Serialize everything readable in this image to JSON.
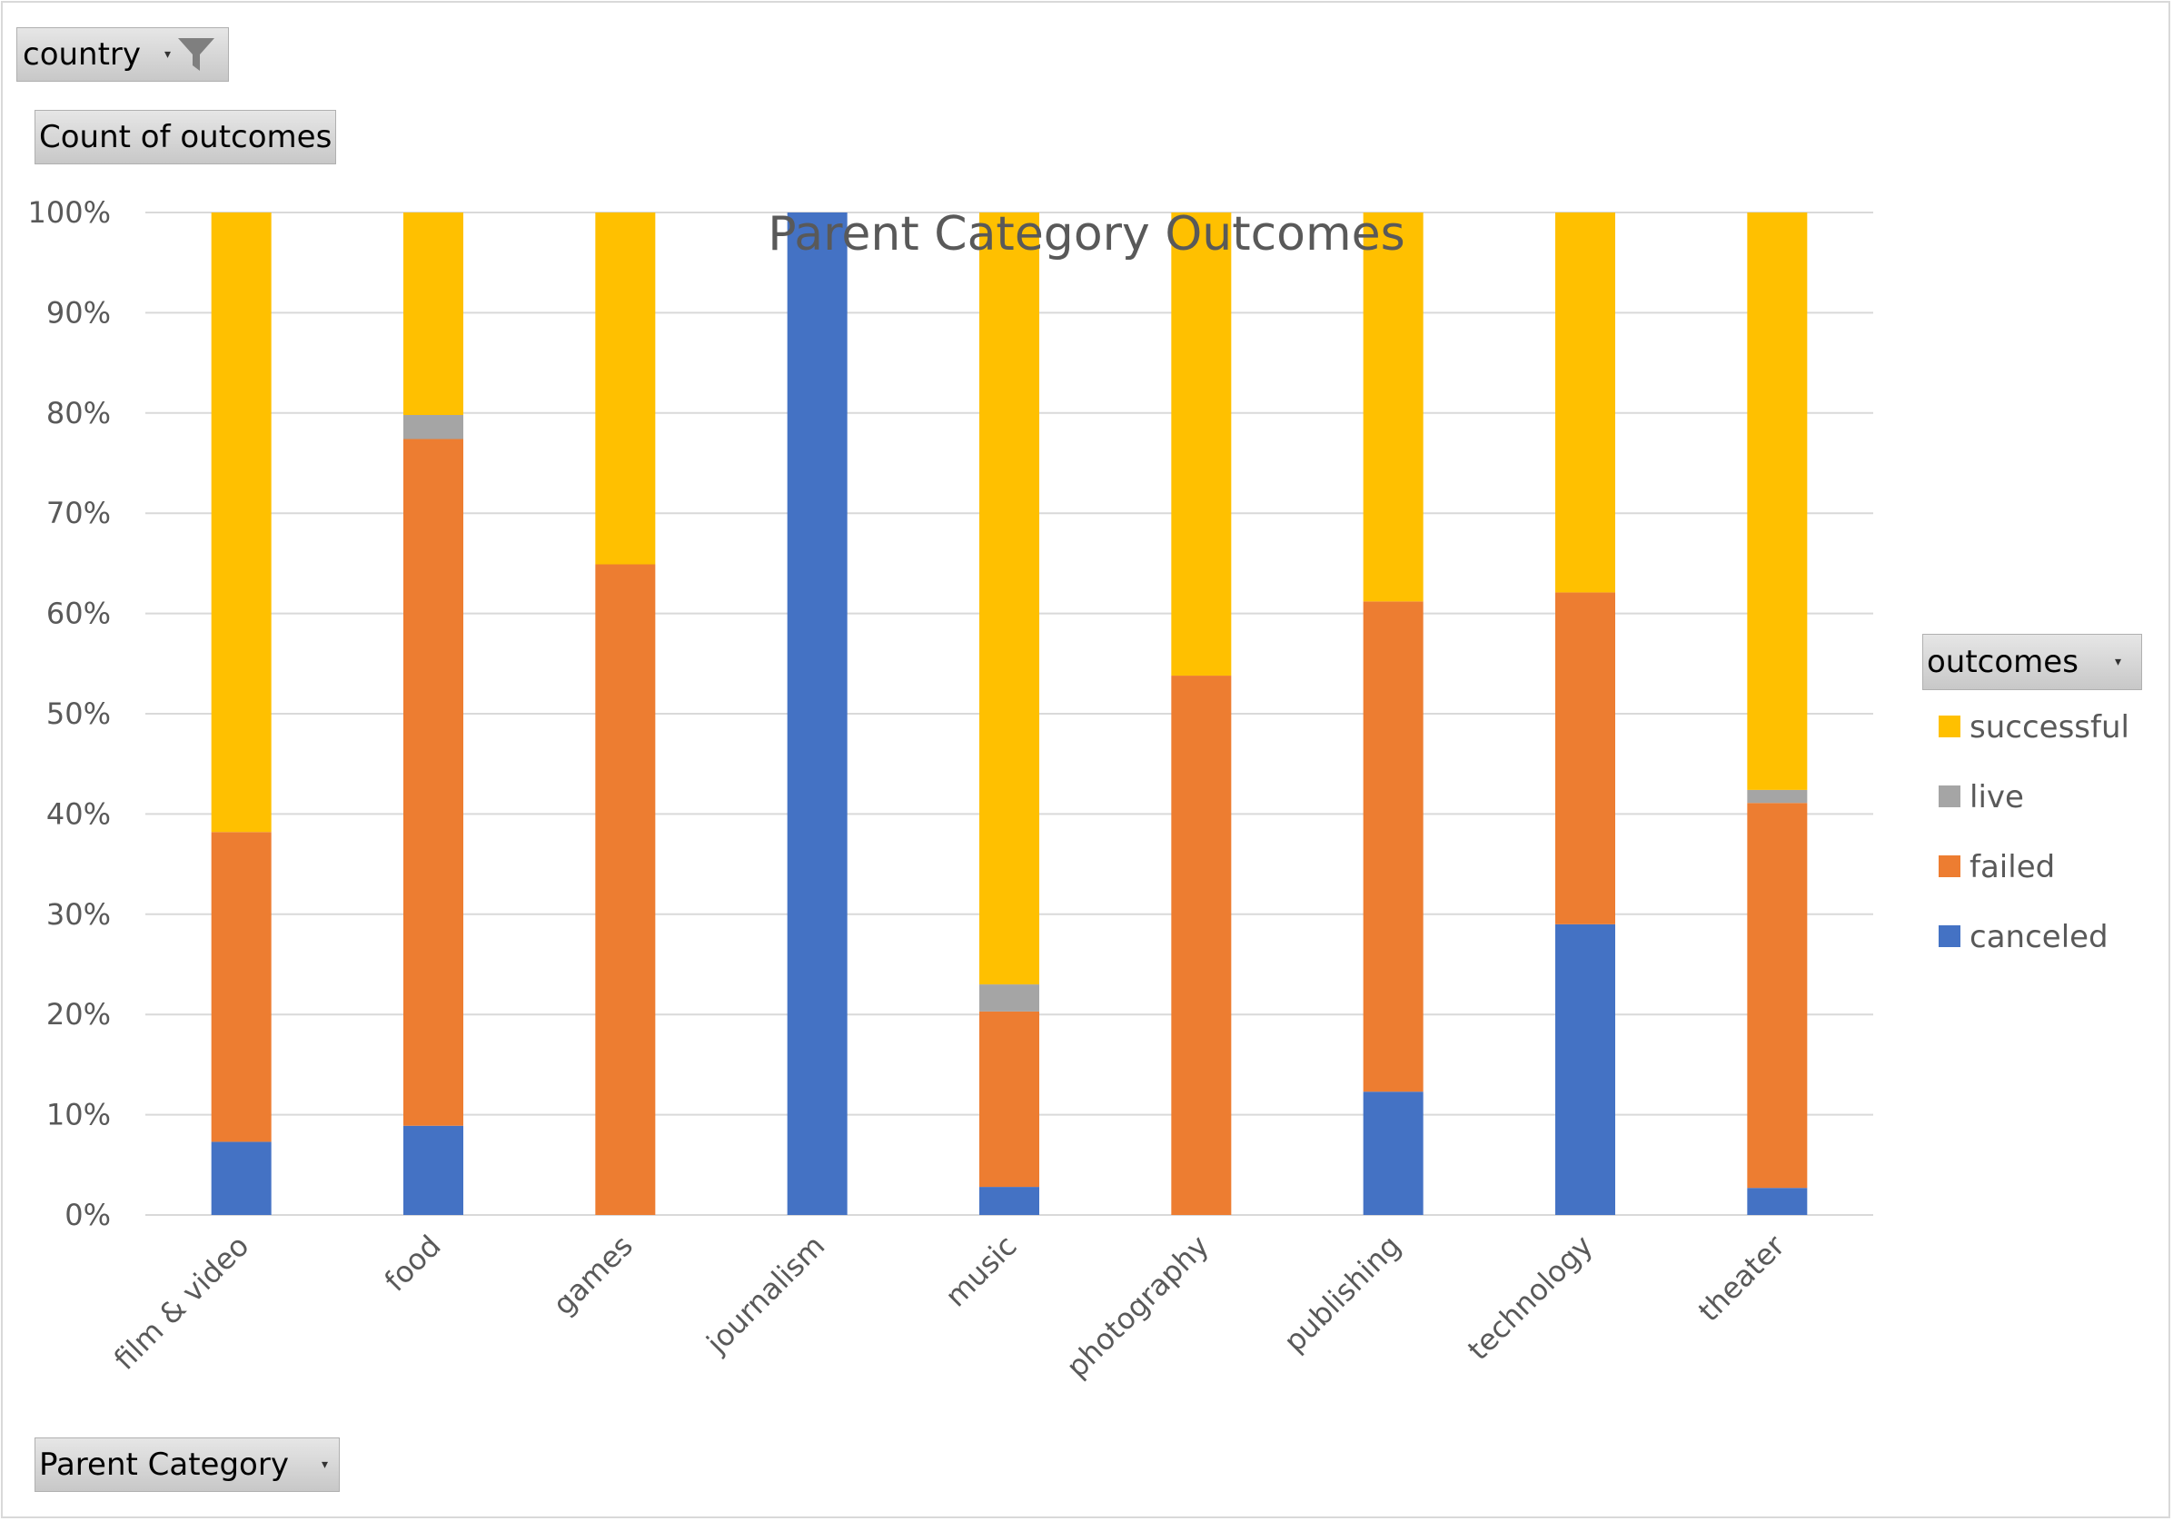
{
  "filters": {
    "country": {
      "label": "country"
    },
    "values": {
      "label": "Count of outcomes"
    },
    "axis": {
      "label": "Parent Category"
    },
    "legend": {
      "label": "outcomes"
    }
  },
  "colors": {
    "successful": "#FFC000",
    "live": "#A5A5A5",
    "failed": "#ED7D31",
    "canceled": "#4472C4",
    "grid": "#d9d9d9",
    "text": "#595959"
  },
  "chart_data": {
    "type": "bar",
    "stacked": "percent",
    "title": "Parent Category Outcomes",
    "xlabel": "",
    "ylabel": "",
    "ylim": [
      0,
      100
    ],
    "yticks": [
      "0%",
      "10%",
      "20%",
      "30%",
      "40%",
      "50%",
      "60%",
      "70%",
      "80%",
      "90%",
      "100%"
    ],
    "grid": true,
    "legend_position": "right",
    "categories": [
      "film & video",
      "food",
      "games",
      "journalism",
      "music",
      "photography",
      "publishing",
      "technology",
      "theater"
    ],
    "series": [
      {
        "name": "canceled",
        "values": [
          7.3,
          8.9,
          0,
          100,
          2.8,
          0,
          12.3,
          29.0,
          2.7
        ]
      },
      {
        "name": "failed",
        "values": [
          30.9,
          68.5,
          64.9,
          0,
          17.5,
          53.8,
          48.9,
          33.1,
          38.4
        ]
      },
      {
        "name": "live",
        "values": [
          0,
          2.4,
          0,
          0,
          2.7,
          0,
          0,
          0,
          1.3
        ]
      },
      {
        "name": "successful",
        "values": [
          61.8,
          20.2,
          35.1,
          0,
          77.0,
          46.2,
          38.8,
          37.9,
          57.6
        ]
      }
    ],
    "legend_order": [
      "successful",
      "live",
      "failed",
      "canceled"
    ]
  }
}
